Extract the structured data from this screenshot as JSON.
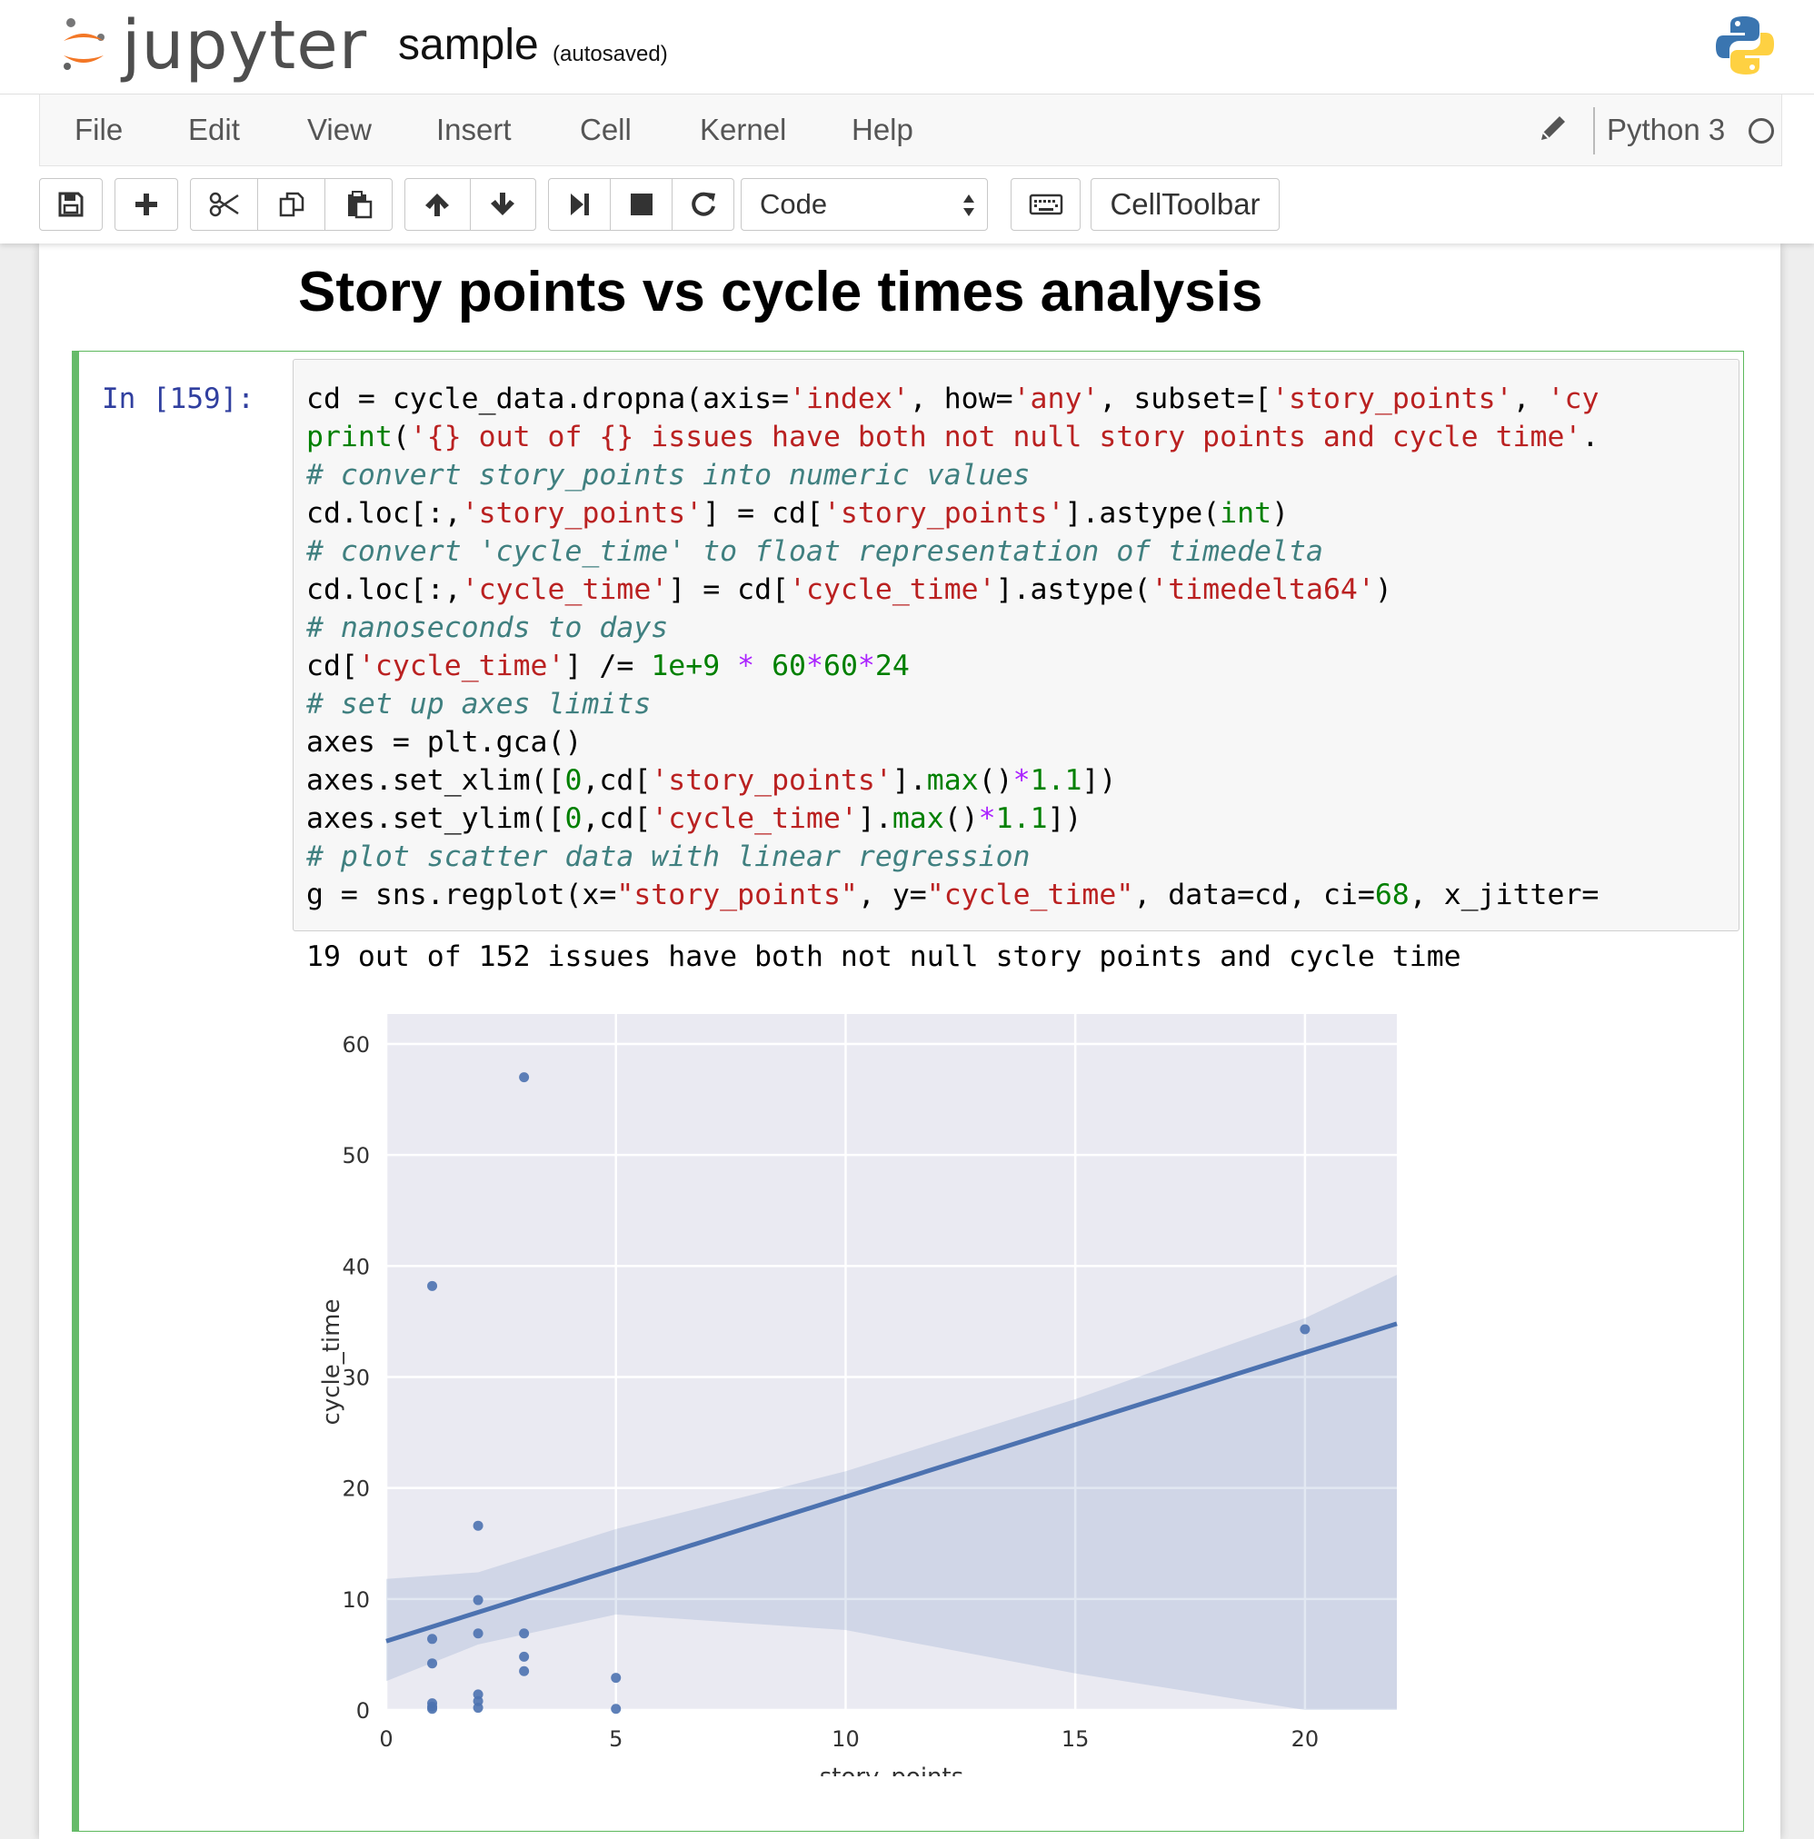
{
  "header": {
    "logo_text": "jupyter",
    "notebook_name": "sample",
    "autosave_status": "(autosaved)"
  },
  "menubar": {
    "items": [
      "File",
      "Edit",
      "View",
      "Insert",
      "Cell",
      "Kernel",
      "Help"
    ],
    "kernel_name": "Python 3"
  },
  "toolbar": {
    "cell_type": "Code",
    "cell_toolbar_label": "CellToolbar",
    "buttons": [
      "save-icon",
      "plus-icon",
      "scissors-icon",
      "copy-icon",
      "paste-icon",
      "arrow-up-icon",
      "arrow-down-icon",
      "step-forward-icon",
      "stop-icon",
      "restart-icon",
      "keyboard-icon"
    ]
  },
  "notebook": {
    "heading": "Story points vs cycle times analysis",
    "cell": {
      "prompt": "In [159]:",
      "code_lines": [
        "cd = cycle_data.dropna(axis='index', how='any', subset=['story_points', 'cy",
        "print('{} out of {} issues have both not null story points and cycle time'.",
        "# convert story_points into numeric values",
        "cd.loc[:,'story_points'] = cd['story_points'].astype(int)",
        "# convert 'cycle_time' to float representation of timedelta",
        "cd.loc[:,'cycle_time'] = cd['cycle_time'].astype('timedelta64')",
        "# nanoseconds to days",
        "cd['cycle_time'] /= 1e+9 * 60*60*24",
        "# set up axes limits",
        "axes = plt.gca()",
        "axes.set_xlim([0,cd['story_points'].max()*1.1])",
        "axes.set_ylim([0,cd['cycle_time'].max()*1.1])",
        "# plot scatter data with linear regression",
        "g = sns.regplot(x=\"story_points\", y=\"cycle_time\", data=cd, ci=68, x_jitter="
      ],
      "output_text": "19 out of 152 issues have both not null story points and cycle time"
    }
  },
  "chart_data": {
    "type": "scatter",
    "xlabel": "story_points",
    "ylabel": "cycle_time",
    "xlim": [
      0,
      22
    ],
    "ylim": [
      0,
      62.7
    ],
    "x_ticks": [
      0,
      5,
      10,
      15,
      20
    ],
    "y_ticks": [
      0,
      10,
      20,
      30,
      40,
      50,
      60
    ],
    "grid": true,
    "background_color": "#eaeaf2",
    "point_color": "#4c72b0",
    "points": [
      {
        "x": 3,
        "y": 57
      },
      {
        "x": 1,
        "y": 38.2
      },
      {
        "x": 20,
        "y": 34.3
      },
      {
        "x": 2,
        "y": 16.6
      },
      {
        "x": 2,
        "y": 9.9
      },
      {
        "x": 2,
        "y": 6.9
      },
      {
        "x": 1,
        "y": 6.4
      },
      {
        "x": 3,
        "y": 6.9
      },
      {
        "x": 3,
        "y": 4.8
      },
      {
        "x": 1,
        "y": 4.2
      },
      {
        "x": 3,
        "y": 3.5
      },
      {
        "x": 5,
        "y": 2.9
      },
      {
        "x": 2,
        "y": 1.4
      },
      {
        "x": 2,
        "y": 0.8
      },
      {
        "x": 1,
        "y": 0.6
      },
      {
        "x": 1,
        "y": 0.3
      },
      {
        "x": 2,
        "y": 0.2
      },
      {
        "x": 1,
        "y": 0.1
      },
      {
        "x": 5,
        "y": 0.1
      }
    ],
    "regression": {
      "x": [
        0,
        22
      ],
      "y": [
        6.2,
        34.8
      ],
      "ci_upper": [
        [
          0,
          11.8
        ],
        [
          2,
          12.4
        ],
        [
          5,
          16.3
        ],
        [
          10,
          21.5
        ],
        [
          15,
          28.0
        ],
        [
          20,
          35.3
        ],
        [
          22,
          39.2
        ]
      ],
      "ci_lower": [
        [
          0,
          2.6
        ],
        [
          2,
          5.9
        ],
        [
          5,
          8.6
        ],
        [
          10,
          7.2
        ],
        [
          15,
          3.3
        ],
        [
          20,
          0
        ],
        [
          22,
          0
        ]
      ]
    }
  }
}
